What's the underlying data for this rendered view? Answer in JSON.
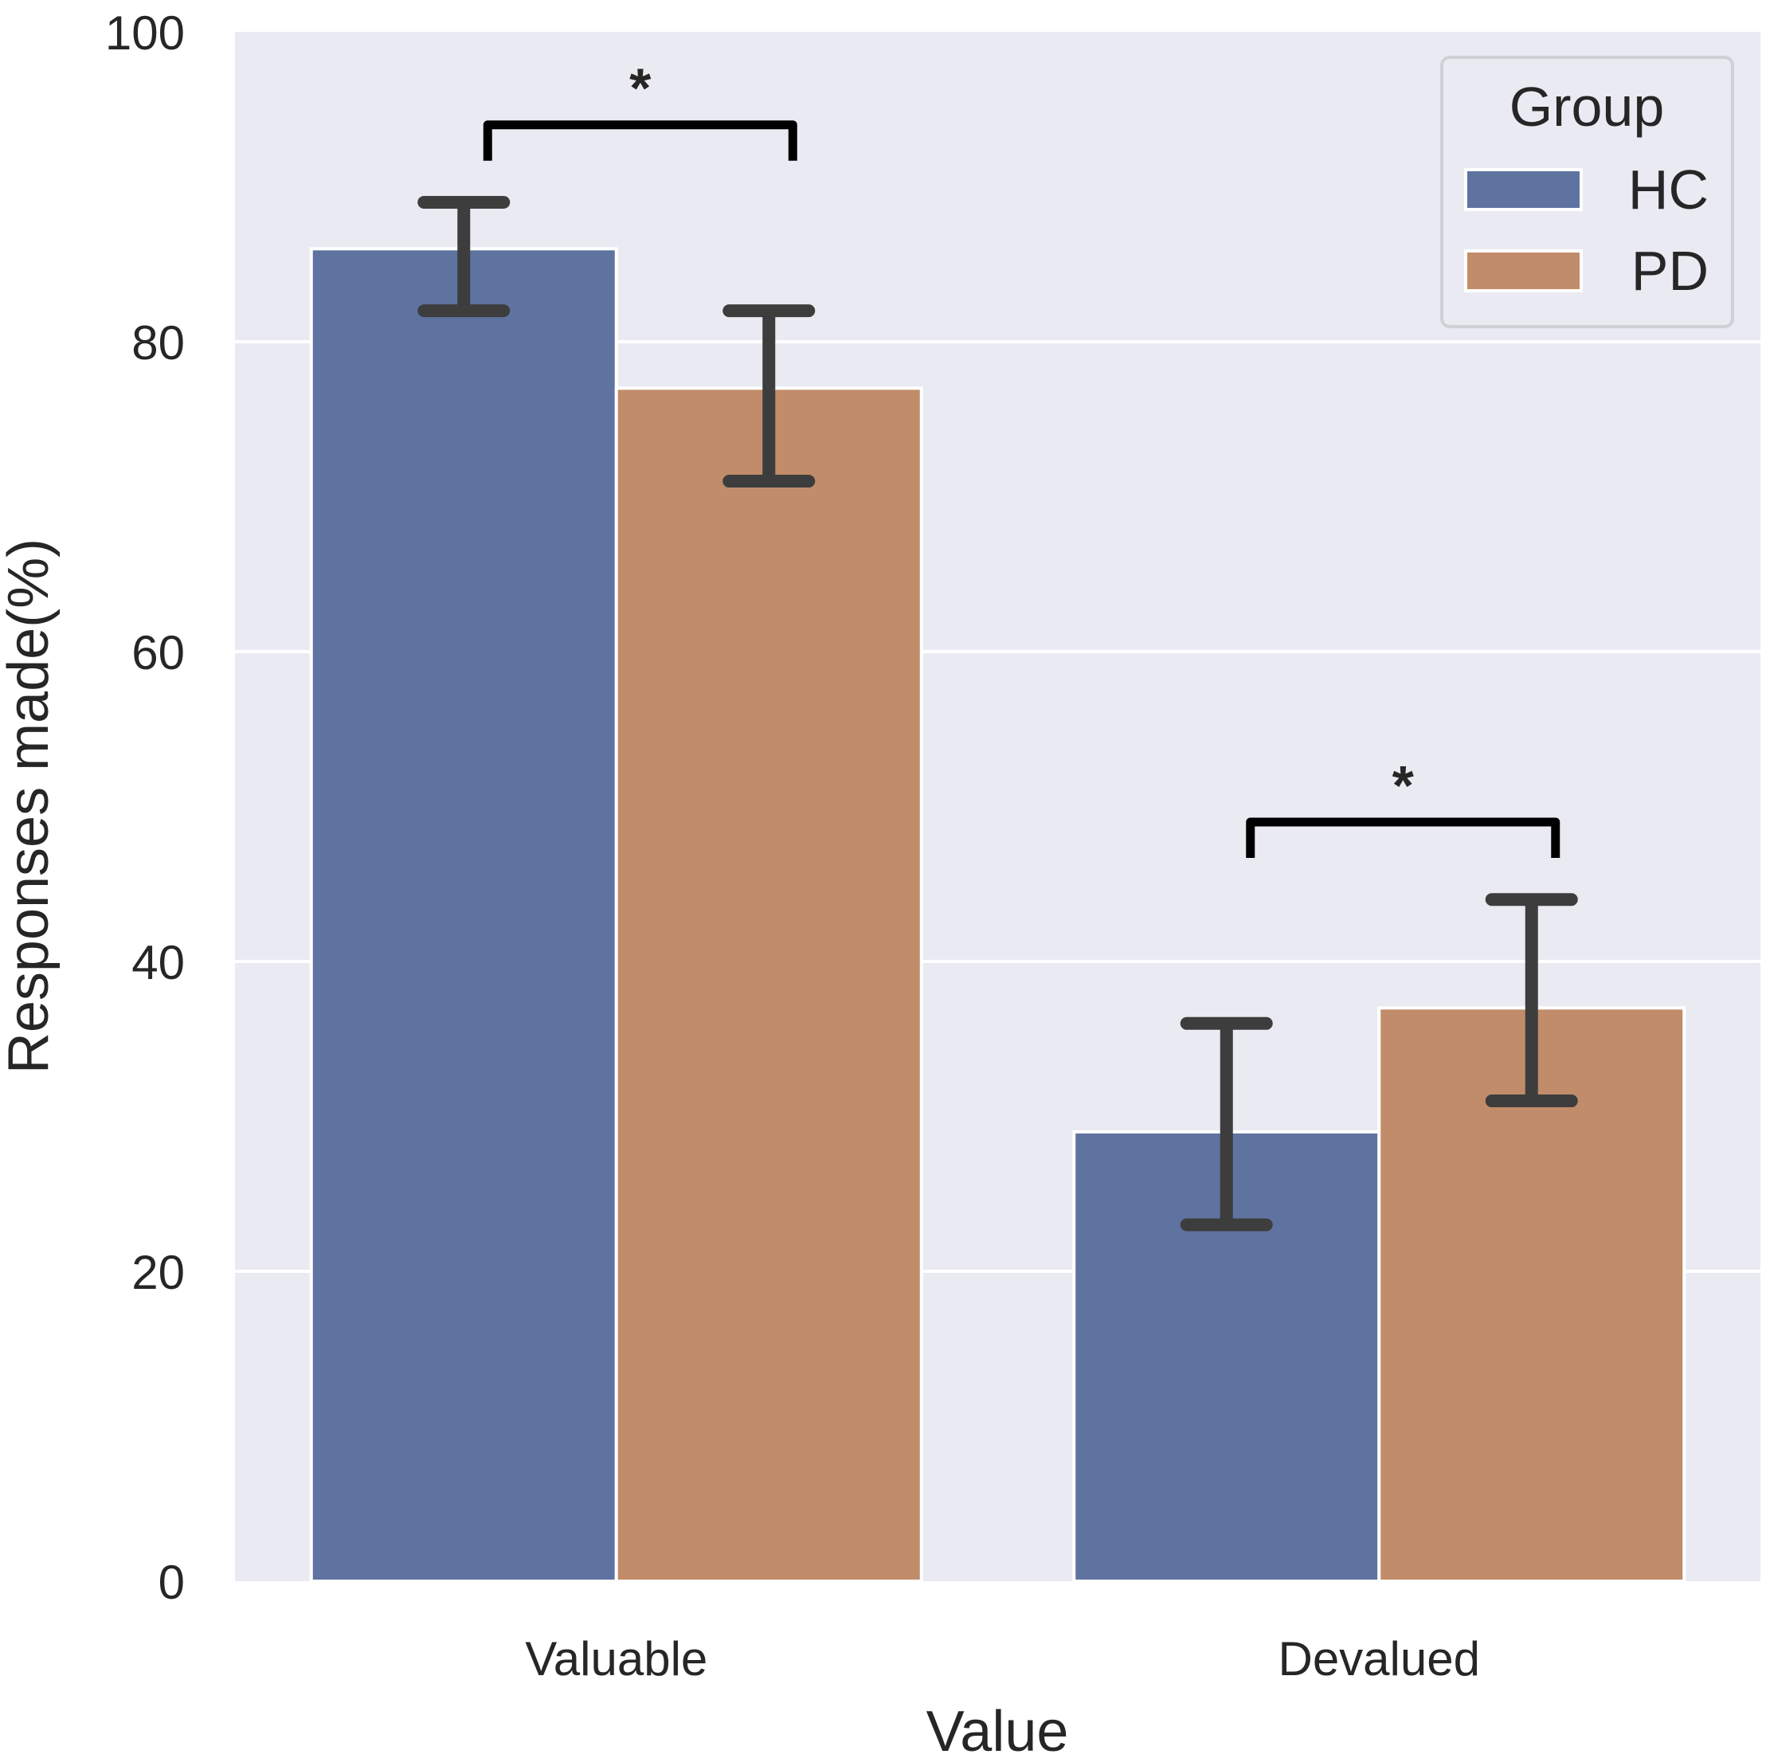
{
  "chart_data": {
    "type": "bar",
    "title": "",
    "xlabel": "Value",
    "ylabel": "Responses made(%)",
    "categories": [
      "Valuable",
      "Devalued"
    ],
    "ylim": [
      0,
      100
    ],
    "yticks": [
      0,
      20,
      40,
      60,
      80,
      100
    ],
    "grid": true,
    "series": [
      {
        "name": "HC",
        "color": "#5f73a0",
        "values": [
          86,
          29
        ],
        "err_low": [
          82,
          23
        ],
        "err_high": [
          89,
          36
        ]
      },
      {
        "name": "PD",
        "color": "#c18c69",
        "values": [
          77,
          37
        ],
        "err_low": [
          71,
          31
        ],
        "err_high": [
          82,
          44
        ]
      }
    ],
    "legend": {
      "title": "Group",
      "position": "top-right"
    },
    "annotations": [
      {
        "category": "Valuable",
        "label": "*",
        "value": 94
      },
      {
        "category": "Devalued",
        "label": "*",
        "value": 49
      }
    ],
    "colors": {
      "background": "#eaeaf2",
      "grid": "#ffffff",
      "errorbar": "#3d3d3d",
      "bracket": "#000000"
    }
  }
}
